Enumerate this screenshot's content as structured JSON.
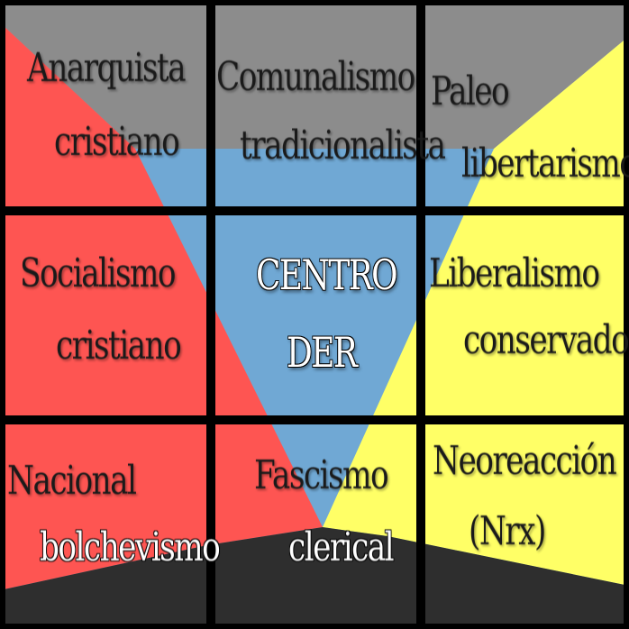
{
  "colors": {
    "grey": "#8c8c8c",
    "red": "#fe5552",
    "blue": "#70a8d4",
    "yellow": "#ffff66",
    "dark": "#2e2e2e",
    "grid": "#000000"
  },
  "cells": {
    "top_left": [
      "Anarquista",
      "cristiano"
    ],
    "top_center": [
      "Comunalismo",
      "tradicionalista"
    ],
    "top_right": [
      "Paleo",
      "libertarismo"
    ],
    "middle_left": [
      "Socialismo",
      "cristiano"
    ],
    "middle_center": [
      "CENTRO",
      "DER"
    ],
    "middle_right": [
      "Liberalismo",
      "conservador"
    ],
    "bottom_left": [
      "Nacional",
      "bolchevismo"
    ],
    "bottom_center": [
      "Fascismo",
      "clerical"
    ],
    "bottom_right": [
      "Neoreacción",
      "(Nrx)"
    ]
  }
}
